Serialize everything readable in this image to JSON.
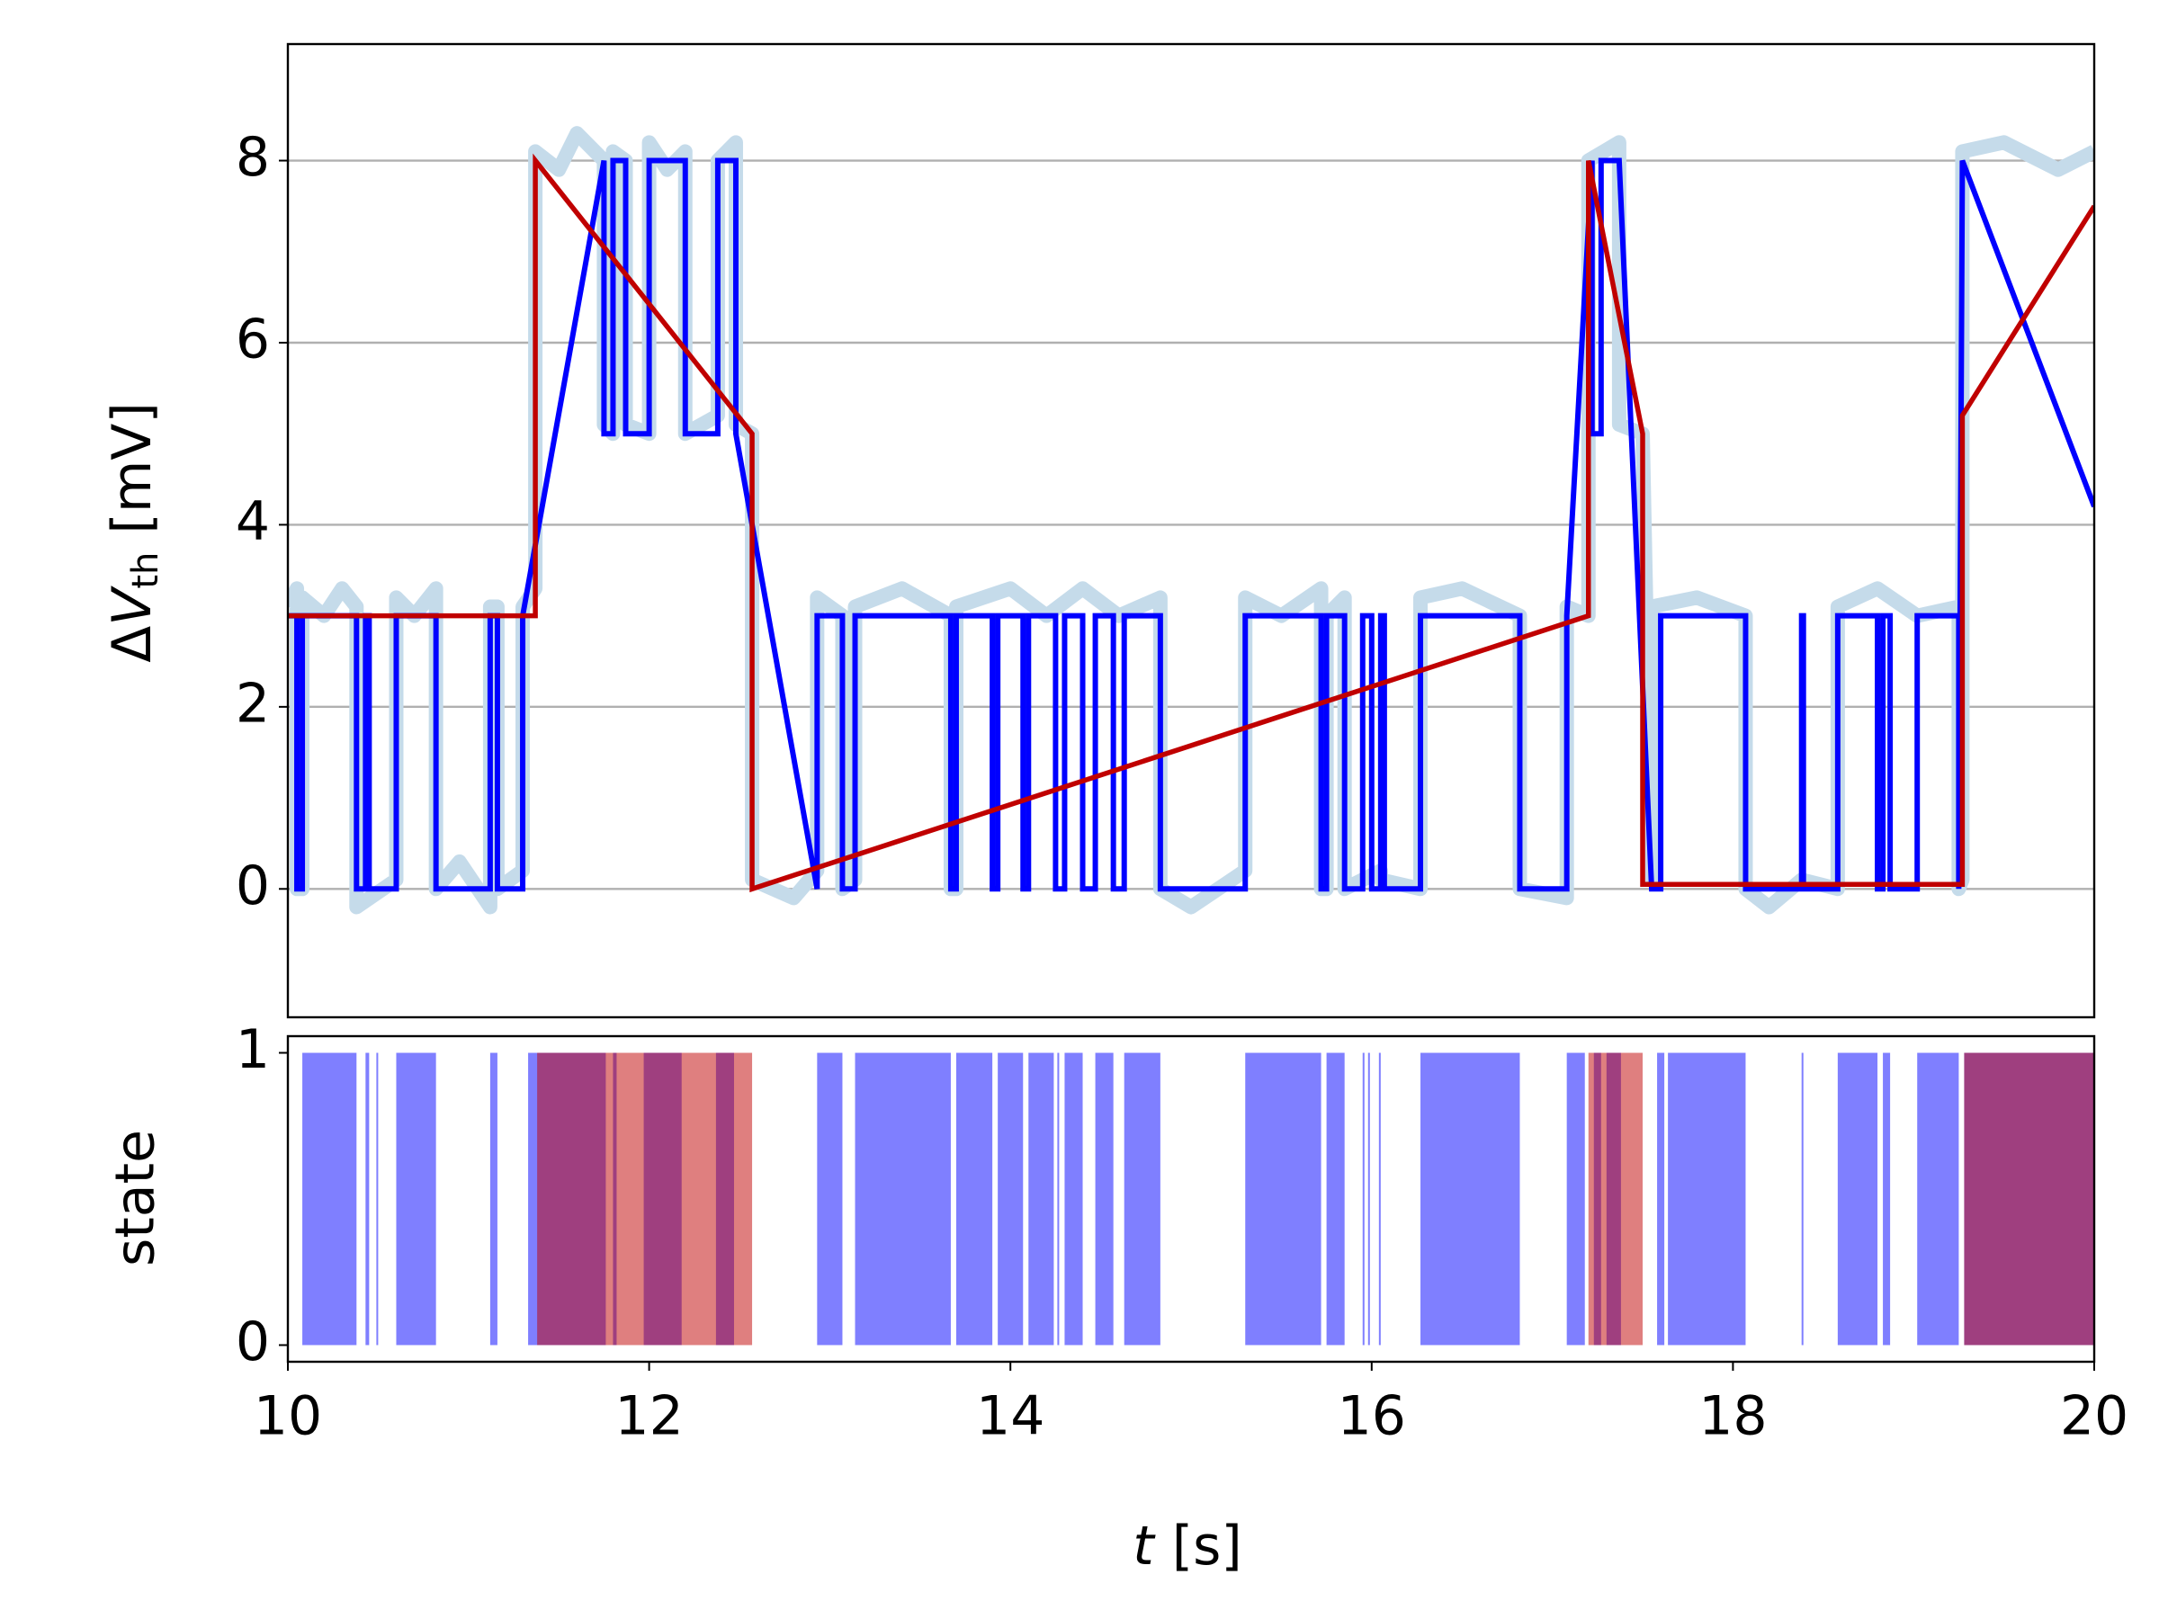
{
  "chart_data": [
    {
      "type": "line",
      "ylabel": [
        "Δ",
        "V",
        "th",
        "[mV]"
      ],
      "xlim": [
        10,
        20
      ],
      "ylim": [
        -1.41,
        9.28
      ],
      "yticks": [
        0,
        2,
        4,
        6,
        8
      ],
      "grid": true,
      "series": [
        {
          "color": "#c5dbea",
          "x": [
            10,
            10.05,
            10.05,
            10.08,
            10.08,
            10.2,
            10.3,
            10.38,
            10.38,
            10.6,
            10.6,
            10.7,
            10.82,
            10.82,
            10.95,
            11.12,
            11.12,
            11.16,
            11.16,
            11.3,
            11.3,
            11.37,
            11.37,
            11.5,
            11.6,
            11.75,
            11.75,
            11.8,
            11.8,
            11.87,
            11.87,
            12.0,
            12.0,
            12.1,
            12.2,
            12.2,
            12.38,
            12.38,
            12.48,
            12.48,
            12.57,
            12.57,
            12.8,
            12.93,
            12.93,
            13.07,
            13.07,
            13.14,
            13.14,
            13.4,
            13.67,
            13.67,
            13.7,
            13.7,
            14.0,
            14.2,
            14.4,
            14.6,
            14.83,
            14.83,
            15.0,
            15.3,
            15.3,
            15.5,
            15.72,
            15.72,
            15.75,
            15.75,
            15.85,
            15.85,
            16.05,
            16.05,
            16.27,
            16.27,
            16.5,
            16.82,
            16.82,
            17.08,
            17.08,
            17.2,
            17.2,
            17.37,
            17.37,
            17.5,
            17.55,
            17.55,
            17.8,
            18.07,
            18.07,
            18.2,
            18.38,
            18.58,
            18.58,
            18.8,
            19.02,
            19.25,
            19.25,
            19.27,
            19.27,
            19.5,
            19.8,
            20
          ],
          "values": [
            3.1,
            3.3,
            0,
            0,
            3.2,
            3.0,
            3.3,
            3.1,
            -0.2,
            0.1,
            3.2,
            3.0,
            3.3,
            0,
            0.3,
            -0.2,
            3.1,
            3.1,
            0,
            0.2,
            3.1,
            3.3,
            8.1,
            7.9,
            8.3,
            8.0,
            5.1,
            5.0,
            8.1,
            8.0,
            5.1,
            5.0,
            8.2,
            7.9,
            8.1,
            5.0,
            5.2,
            8.0,
            8.2,
            5.1,
            5.0,
            0.1,
            -0.1,
            0.2,
            3.2,
            3.0,
            0,
            0.1,
            3.1,
            3.3,
            3.0,
            0,
            0,
            3.1,
            3.3,
            3.0,
            3.3,
            3.0,
            3.2,
            0,
            -0.2,
            0.2,
            3.2,
            3.0,
            3.3,
            0,
            0,
            3.0,
            3.2,
            0,
            0.2,
            0.1,
            0,
            3.2,
            3.3,
            3.0,
            0,
            -0.1,
            3.1,
            3.0,
            8.0,
            8.2,
            5.1,
            5.0,
            0.1,
            3.1,
            3.2,
            3.0,
            0,
            -0.2,
            0.1,
            0,
            3.1,
            3.3,
            3.0,
            3.1,
            0,
            0.1,
            8.1,
            8.2,
            7.9,
            8.1
          ]
        },
        {
          "color": "#0000ff",
          "x": [
            10,
            10.05,
            10.05,
            10.08,
            10.08,
            10.38,
            10.38,
            10.43,
            10.43,
            10.45,
            10.45,
            10.6,
            10.6,
            10.82,
            10.82,
            11.12,
            11.12,
            11.16,
            11.16,
            11.3,
            11.3,
            11.75,
            11.75,
            11.8,
            11.8,
            11.87,
            11.87,
            12.0,
            12.0,
            12.2,
            12.2,
            12.38,
            12.38,
            12.48,
            12.48,
            12.93,
            12.93,
            13.07,
            13.07,
            13.14,
            13.14,
            13.67,
            13.67,
            13.7,
            13.7,
            13.9,
            13.9,
            13.93,
            13.93,
            14.07,
            14.07,
            14.1,
            14.1,
            14.25,
            14.25,
            14.3,
            14.3,
            14.4,
            14.4,
            14.47,
            14.47,
            14.57,
            14.57,
            14.63,
            14.63,
            14.83,
            14.83,
            15.3,
            15.3,
            15.72,
            15.72,
            15.75,
            15.75,
            15.85,
            15.85,
            15.95,
            15.95,
            16.0,
            16.0,
            16.05,
            16.05,
            16.07,
            16.07,
            16.27,
            16.27,
            16.82,
            16.82,
            17.08,
            17.08,
            17.22,
            17.22,
            17.27,
            17.27,
            17.37,
            17.55,
            17.6,
            17.6,
            18.07,
            18.07,
            18.38,
            18.38,
            18.39,
            18.39,
            18.58,
            18.58,
            18.8,
            18.8,
            18.83,
            18.83,
            18.87,
            18.87,
            19.02,
            19.02,
            19.25,
            19.25,
            19.27,
            20
          ],
          "values": [
            3,
            3,
            0,
            0,
            3,
            3,
            0,
            0,
            3,
            3,
            0,
            0,
            3,
            3,
            0,
            0,
            3,
            3,
            0,
            0,
            3,
            8,
            5,
            5,
            8,
            8,
            5,
            5,
            8,
            8,
            5,
            5,
            8,
            8,
            5,
            0,
            3,
            3,
            0,
            0,
            3,
            3,
            0,
            0,
            3,
            3,
            0,
            0,
            3,
            3,
            0,
            0,
            3,
            3,
            0,
            0,
            3,
            3,
            0,
            0,
            3,
            3,
            0,
            0,
            3,
            3,
            0,
            0,
            3,
            3,
            0,
            0,
            3,
            3,
            0,
            0,
            3,
            3,
            0,
            0,
            3,
            3,
            0,
            0,
            3,
            3,
            0,
            0,
            3,
            8,
            5,
            5,
            8,
            8,
            0,
            0,
            3,
            3,
            0,
            0,
            3,
            3,
            0,
            0,
            3,
            3,
            0,
            0,
            3,
            3,
            0,
            0,
            3,
            3,
            0,
            8,
            4.2
          ]
        },
        {
          "color": "#c00000",
          "x": [
            10,
            11.37,
            11.37,
            12.57,
            12.57,
            17.2,
            17.2,
            17.5,
            17.5,
            19.27,
            19.27,
            20
          ],
          "values": [
            3,
            3,
            8,
            5,
            0,
            3,
            8,
            5,
            0.05,
            0.05,
            5.2,
            7.5
          ]
        }
      ]
    },
    {
      "type": "span",
      "ylabel": "state",
      "xlabel": [
        "t",
        "[s]"
      ],
      "xlim": [
        10,
        20
      ],
      "xticks": [
        10,
        12,
        14,
        16,
        18,
        20
      ],
      "ylim": [
        -0.057,
        1.057
      ],
      "yticks": [
        0,
        1
      ],
      "series": [
        {
          "color": "#0000ff",
          "starts": [
            10.08,
            10.43,
            10.49,
            10.6,
            11.12,
            11.33,
            11.8,
            11.97,
            12.37,
            12.93,
            13.14,
            13.7,
            13.93,
            14.1,
            14.26,
            14.3,
            14.47,
            14.63,
            15.3,
            15.75,
            15.95,
            15.98,
            16.04,
            16.27,
            17.08,
            17.23,
            17.3,
            17.58,
            17.64,
            18.38,
            18.58,
            18.83,
            19.02,
            19.28
          ],
          "ends": [
            10.38,
            10.45,
            10.5,
            10.82,
            11.16,
            11.76,
            11.82,
            12.18,
            12.47,
            13.07,
            13.67,
            13.9,
            14.07,
            14.24,
            14.27,
            14.4,
            14.57,
            14.83,
            15.72,
            15.85,
            15.96,
            15.99,
            16.05,
            16.82,
            17.18,
            17.27,
            17.38,
            17.62,
            18.07,
            18.39,
            18.8,
            18.87,
            19.25,
            20
          ],
          "values": [
            1,
            1,
            1,
            1,
            1,
            1,
            1,
            1,
            1,
            1,
            1,
            1,
            1,
            1,
            1,
            1,
            1,
            1,
            1,
            1,
            1,
            1,
            1,
            1,
            1,
            1,
            1,
            1,
            1,
            1,
            1,
            1,
            1,
            1
          ]
        },
        {
          "color": "#c00000",
          "starts": [
            11.38,
            17.2,
            19.28
          ],
          "ends": [
            12.57,
            17.5,
            20
          ],
          "values": [
            1,
            1,
            1
          ]
        }
      ]
    }
  ]
}
